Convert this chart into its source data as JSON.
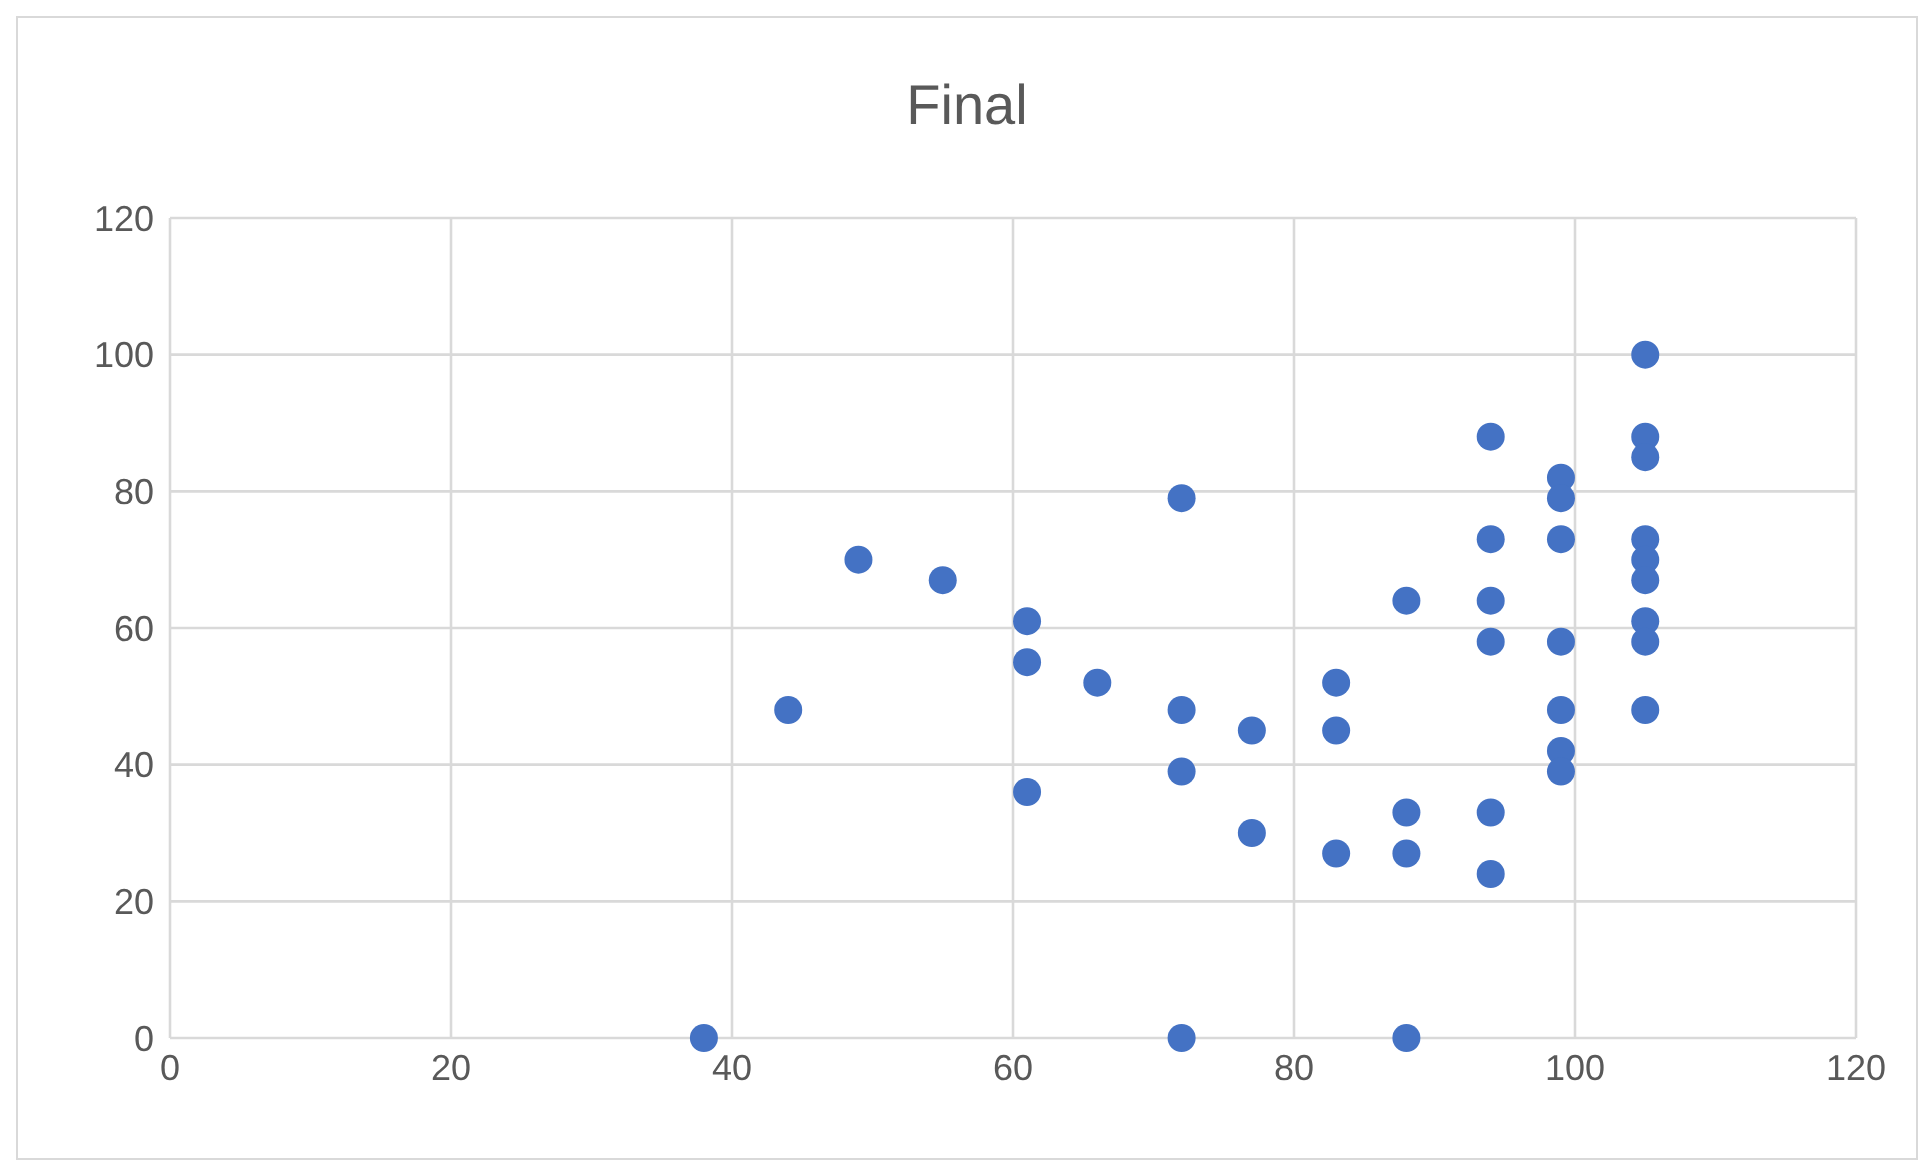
{
  "chart_data": {
    "type": "scatter",
    "title": "Final",
    "x": [
      38,
      44,
      49,
      55,
      61,
      61,
      61,
      66,
      72,
      72,
      72,
      72,
      77,
      77,
      83,
      83,
      83,
      88,
      88,
      88,
      88,
      94,
      94,
      94,
      94,
      94,
      94,
      99,
      99,
      99,
      99,
      99,
      99,
      99,
      105,
      105,
      105,
      105,
      105,
      105,
      105,
      105,
      105
    ],
    "series": [
      {
        "color": "#4472c4",
        "values": [
          0,
          48,
          70,
          67,
          61,
          55,
          36,
          52,
          79,
          48,
          39,
          0,
          45,
          30,
          52,
          45,
          27,
          64,
          33,
          27,
          0,
          88,
          73,
          64,
          58,
          33,
          24,
          82,
          79,
          73,
          58,
          48,
          42,
          39,
          100,
          88,
          85,
          73,
          70,
          67,
          61,
          58,
          48
        ]
      }
    ],
    "xlim": [
      0,
      120
    ],
    "xticks": [
      0,
      20,
      40,
      60,
      80,
      100,
      120
    ],
    "ylim": [
      0,
      120
    ],
    "yticks": [
      0,
      20,
      40,
      60,
      80,
      100,
      120
    ],
    "grid": true,
    "legend": false,
    "marker": "circle"
  }
}
